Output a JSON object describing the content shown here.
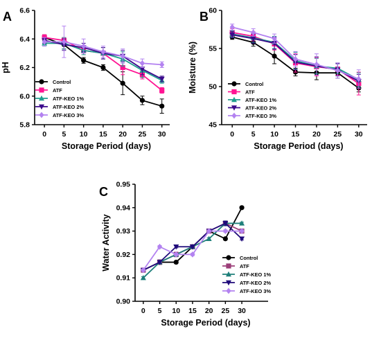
{
  "chart_data": [
    {
      "panel_label": "A",
      "type": "line",
      "xlabel": "Storage Period (days)",
      "ylabel": "pH",
      "x": [
        0,
        5,
        10,
        15,
        20,
        25,
        30
      ],
      "xticks": [
        "0",
        "5",
        "10",
        "15",
        "20",
        "25",
        "30"
      ],
      "ylim": [
        5.8,
        6.6
      ],
      "yticks": [
        "5.8",
        "6.0",
        "6.2",
        "6.4",
        "6.6"
      ],
      "legend_position": "bottom-left",
      "series": [
        {
          "name": "Control",
          "color": "#000000",
          "marker": "circle",
          "values": [
            6.41,
            6.36,
            6.25,
            6.2,
            6.09,
            5.97,
            5.93
          ],
          "errors": [
            0.02,
            0.03,
            0.02,
            0.02,
            0.08,
            0.03,
            0.05
          ]
        },
        {
          "name": "ATF",
          "color": "#ff1493",
          "marker": "square",
          "values": [
            6.41,
            6.39,
            6.32,
            6.3,
            6.2,
            6.15,
            6.04
          ],
          "errors": [
            0.02,
            0.02,
            0.03,
            0.04,
            0.05,
            0.03,
            0.02
          ]
        },
        {
          "name": "ATF-KEO 1%",
          "color": "#1e9e8e",
          "marker": "triangle-up",
          "values": [
            6.37,
            6.37,
            6.32,
            6.3,
            6.26,
            6.18,
            6.11
          ],
          "errors": [
            0.02,
            0.04,
            0.03,
            0.04,
            0.05,
            0.05,
            0.02
          ]
        },
        {
          "name": "ATF-KEO 2%",
          "color": "#3b0a8c",
          "marker": "triangle-down",
          "values": [
            6.39,
            6.36,
            6.34,
            6.3,
            6.28,
            6.19,
            6.12
          ],
          "errors": [
            0.02,
            0.04,
            0.03,
            0.04,
            0.04,
            0.04,
            0.02
          ]
        },
        {
          "name": "ATF-KEO 3%",
          "color": "#b382f0",
          "marker": "diamond",
          "values": [
            6.38,
            6.38,
            6.35,
            6.31,
            6.28,
            6.23,
            6.22
          ],
          "errors": [
            0.03,
            0.11,
            0.05,
            0.04,
            0.05,
            0.03,
            0.02
          ]
        }
      ]
    },
    {
      "panel_label": "B",
      "type": "line",
      "xlabel": "Storage Period (days)",
      "ylabel": "Moisture (%)",
      "x": [
        0,
        5,
        10,
        15,
        20,
        25,
        30
      ],
      "xticks": [
        "0",
        "5",
        "10",
        "15",
        "20",
        "25",
        "30"
      ],
      "ylim": [
        45,
        60
      ],
      "yticks": [
        "45",
        "50",
        "55",
        "60"
      ],
      "legend_position": "bottom-left",
      "series": [
        {
          "name": "Control",
          "color": "#000000",
          "marker": "circle",
          "values": [
            56.5,
            55.8,
            54.0,
            51.9,
            51.8,
            51.8,
            49.8
          ],
          "errors": [
            0.3,
            0.5,
            1.0,
            0.5,
            0.9,
            0.7,
            0.5
          ]
        },
        {
          "name": "ATF",
          "color": "#ff1493",
          "marker": "square",
          "values": [
            57.1,
            56.6,
            55.6,
            53.1,
            52.6,
            52.3,
            50.4
          ],
          "errors": [
            0.5,
            0.6,
            0.8,
            1.2,
            1.2,
            0.8,
            1.5
          ]
        },
        {
          "name": "ATF-KEO 1%",
          "color": "#1e9e8e",
          "marker": "triangle-up",
          "values": [
            56.9,
            56.4,
            55.8,
            53.4,
            52.7,
            52.4,
            50.9
          ],
          "errors": [
            0.4,
            0.6,
            0.8,
            1.1,
            1.0,
            0.7,
            0.9
          ]
        },
        {
          "name": "ATF-KEO 2%",
          "color": "#3b0a8c",
          "marker": "triangle-down",
          "values": [
            56.8,
            56.3,
            55.7,
            53.2,
            52.7,
            52.2,
            50.7
          ],
          "errors": [
            0.4,
            0.6,
            0.8,
            1.0,
            1.2,
            0.8,
            0.9
          ]
        },
        {
          "name": "ATF-KEO 3%",
          "color": "#b382f0",
          "marker": "diamond",
          "values": [
            57.8,
            57.1,
            56.3,
            53.6,
            52.9,
            52.1,
            51.0
          ],
          "errors": [
            0.4,
            0.5,
            0.6,
            1.0,
            1.4,
            1.0,
            1.2
          ]
        }
      ]
    },
    {
      "panel_label": "C",
      "type": "line",
      "xlabel": "Storage Period (days)",
      "ylabel": "Water Activity",
      "x": [
        0,
        5,
        10,
        15,
        20,
        25,
        30
      ],
      "xticks": [
        "0",
        "5",
        "10",
        "15",
        "20",
        "25",
        "30"
      ],
      "ylim": [
        0.9,
        0.95
      ],
      "yticks": [
        "0.90",
        "0.91",
        "0.92",
        "0.93",
        "0.94",
        "0.95"
      ],
      "legend_position": "bottom-right",
      "series": [
        {
          "name": "Control",
          "color": "#000000",
          "marker": "circle",
          "values": [
            0.9133,
            0.9167,
            0.9167,
            0.9233,
            0.93,
            0.9267,
            0.94
          ],
          "errors": [
            0.0005,
            0.001,
            0.0005,
            0.0005,
            0.0005,
            0.0005,
            0.0005
          ]
        },
        {
          "name": "ATF",
          "color": "#9b3d78",
          "marker": "square",
          "values": [
            0.9133,
            0.9167,
            0.92,
            0.9233,
            0.93,
            0.9333,
            0.93
          ],
          "errors": [
            0.0005,
            0.001,
            0.001,
            0.0005,
            0.0005,
            0.001,
            0.0005
          ]
        },
        {
          "name": "ATF-KEO 1%",
          "color": "#1e7f7a",
          "marker": "triangle-up",
          "values": [
            0.91,
            0.9167,
            0.92,
            0.9233,
            0.9267,
            0.9333,
            0.9333
          ],
          "errors": [
            0.0005,
            0.0005,
            0.0005,
            0.0005,
            0.0005,
            0.001,
            0.0005
          ]
        },
        {
          "name": "ATF-KEO 2%",
          "color": "#1f0a7a",
          "marker": "triangle-down",
          "values": [
            0.9133,
            0.9167,
            0.9233,
            0.9233,
            0.93,
            0.9333,
            0.9267
          ],
          "errors": [
            0.0005,
            0.0005,
            0.0005,
            0.0005,
            0.0005,
            0.001,
            0.0005
          ]
        },
        {
          "name": "ATF-KEO 3%",
          "color": "#b382f0",
          "marker": "diamond",
          "values": [
            0.9133,
            0.9233,
            0.92,
            0.92,
            0.93,
            0.93,
            0.93
          ],
          "errors": [
            0.0005,
            0.0005,
            0.0005,
            0.0005,
            0.0005,
            0.0005,
            0.0005
          ]
        }
      ]
    }
  ]
}
